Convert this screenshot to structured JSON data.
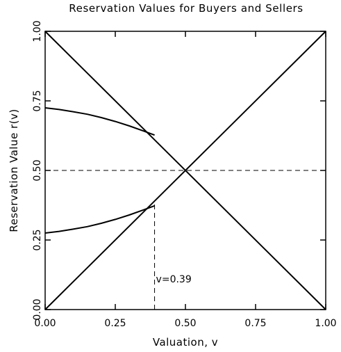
{
  "chart_data": {
    "type": "line",
    "title": "Reservation Values for Buyers and Sellers",
    "xlabel": "Valuation, v",
    "ylabel": "Reservation Value r(v)",
    "xlim": [
      0,
      1
    ],
    "ylim": [
      0,
      1
    ],
    "x_ticks": [
      "0.00",
      "0.25",
      "0.50",
      "0.75",
      "1.00"
    ],
    "y_ticks": [
      "0.00",
      "0.25",
      "0.50",
      "0.75",
      "1.00"
    ],
    "grid": false,
    "series": [
      {
        "x": [
          0,
          1
        ],
        "y": [
          0,
          1
        ]
      },
      {
        "x": [
          0,
          1
        ],
        "y": [
          1,
          0
        ]
      },
      {
        "x": [
          0,
          0.05,
          0.1,
          0.15,
          0.2,
          0.25,
          0.3,
          0.35,
          0.39
        ],
        "y": [
          0.725,
          0.719,
          0.711,
          0.702,
          0.69,
          0.676,
          0.66,
          0.642,
          0.627
        ]
      },
      {
        "x": [
          0,
          0.05,
          0.1,
          0.15,
          0.2,
          0.25,
          0.3,
          0.35,
          0.39
        ],
        "y": [
          0.275,
          0.281,
          0.289,
          0.298,
          0.31,
          0.324,
          0.34,
          0.358,
          0.373
        ]
      }
    ],
    "reference_lines": [
      {
        "orientation": "horizontal",
        "value": 0.5,
        "style": "dashed"
      },
      {
        "orientation": "vertical",
        "value": 0.39,
        "from": 0,
        "to": 0.383,
        "style": "dashed"
      }
    ],
    "annotations": [
      {
        "text": "v=0.39",
        "x": 0.39,
        "y": 0.11
      }
    ]
  }
}
